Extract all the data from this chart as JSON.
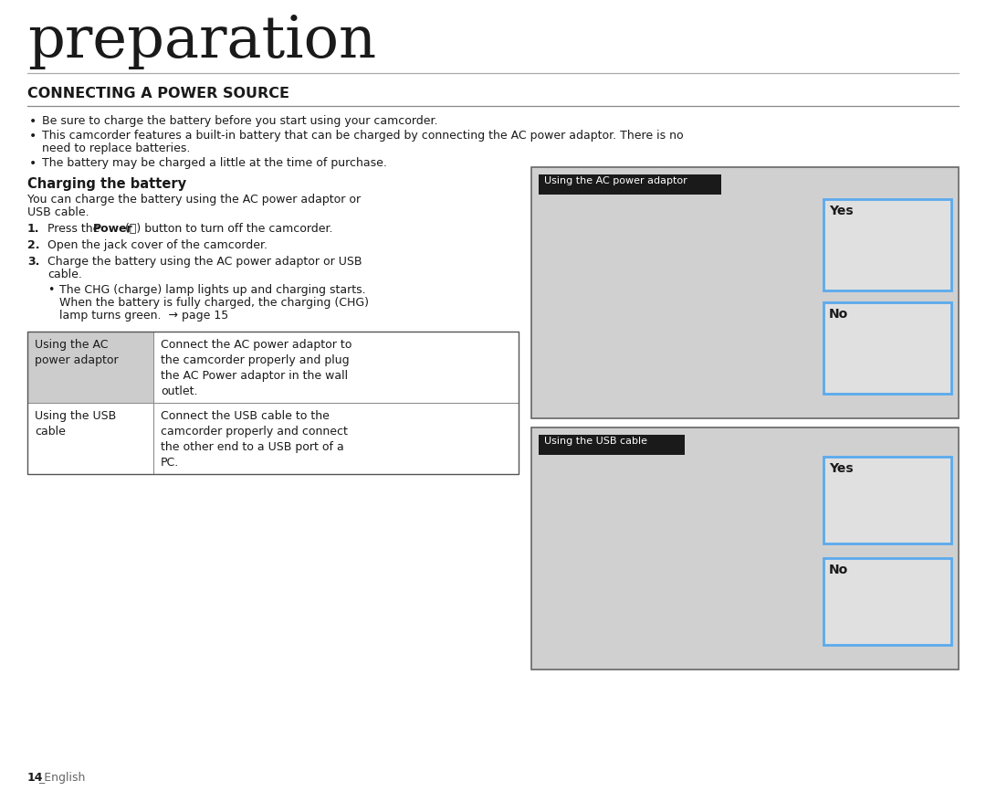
{
  "title": "preparation",
  "section_title": "CONNECTING A POWER SOURCE",
  "bullet1": "Be sure to charge the battery before you start using your camcorder.",
  "bullet2": "This camcorder features a built-in battery that can be charged by connecting the AC power adaptor. There is no need to replace batteries.",
  "bullet2_cont": "need to replace batteries.",
  "bullet3": "The battery may be charged a little at the time of purchase.",
  "subsection_title": "Charging the battery",
  "body_text1": "You can charge the battery using the AC power adaptor or",
  "body_text2": "USB cable.",
  "step1_pre": "Press the ",
  "step1_bold": "Power",
  "step1_post": " (⏻) button to turn off the camcorder.",
  "step2": "Open the jack cover of the camcorder.",
  "step3": "Charge the battery using the AC power adaptor or USB",
  "step3_cont": "cable.",
  "sub_bullet1": "The CHG (charge) lamp lights up and charging starts.",
  "sub_bullet2": "When the battery is fully charged, the charging (CHG)",
  "sub_bullet3": "lamp turns green.  → page 15",
  "table_row1_c1": "Using the AC\npower adaptor",
  "table_row1_c2": "Connect the AC power adaptor to\nthe camcorder properly and plug\nthe AC Power adaptor in the wall\noutlet.",
  "table_row2_c1": "Using the USB\ncable",
  "table_row2_c2": "Connect the USB cable to the\ncamcorder properly and connect\nthe other end to a USB port of a\nPC.",
  "box1_label": "Using the AC power adaptor",
  "box2_label": "Using the USB cable",
  "yes_label": "Yes",
  "no_label": "No",
  "footer_num": "14",
  "footer_text": "_English",
  "bg_color": "#ffffff",
  "text_color": "#1a1a1a",
  "box_label_bg": "#1a1a1a",
  "box_label_color": "#ffffff",
  "yes_no_border": "#5aaaee",
  "yes_no_bg": "#e8e8e8",
  "panel_bg": "#d0d0d0",
  "panel_border": "#666666",
  "table_col1_bg": "#cccccc",
  "table_border": "#888888",
  "title_fontsize": 46,
  "section_fontsize": 11,
  "body_fontsize": 9,
  "footer_fontsize": 9
}
